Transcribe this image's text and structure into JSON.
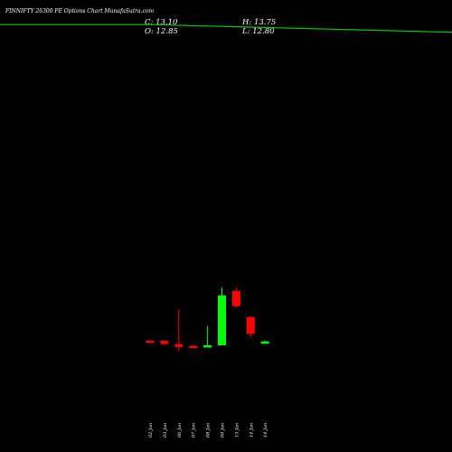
{
  "header": {
    "title": "FINNIFTY 26300 PE Options  Chart MunafaSutra.com",
    "open_label": "O:",
    "open_value": "12.85",
    "high_label": "H:",
    "high_value": "13.75",
    "low_label": "L:",
    "low_value": "12.80",
    "close_label": "C:",
    "close_value": "13.10"
  },
  "colors": {
    "up": "#00ff00",
    "down": "#ff0000",
    "line": "#00cc00",
    "background": "#000000"
  },
  "chart_data": {
    "type": "candlestick",
    "title": "FINNIFTY 26300 PE Options  Chart MunafaSutra.com",
    "categories": [
      "02 Jan",
      "03 Jan",
      "06 Jan",
      "07 Jan",
      "08 Jan",
      "09 Jan",
      "13 Jan",
      "14 Jan",
      "14 Jan"
    ],
    "candles": [
      {
        "date": "02 Jan",
        "open": 13.6,
        "high": 13.6,
        "low": 12.5,
        "close": 12.6
      },
      {
        "date": "03 Jan",
        "open": 13.6,
        "high": 13.6,
        "low": 11.1,
        "close": 11.4
      },
      {
        "date": "06 Jan",
        "open": 11.4,
        "high": 34.0,
        "low": 6.9,
        "close": 9.5
      },
      {
        "date": "07 Jan",
        "open": 10.3,
        "high": 10.3,
        "low": 9.3,
        "close": 9.3
      },
      {
        "date": "08 Jan",
        "open": 9.3,
        "high": 23.0,
        "low": 9.3,
        "close": 10.6
      },
      {
        "date": "09 Jan",
        "open": 10.6,
        "high": 48.0,
        "low": 10.6,
        "close": 43.0
      },
      {
        "date": "13 Jan",
        "open": 46.0,
        "high": 48.0,
        "low": 35.0,
        "close": 36.0
      },
      {
        "date": "14 Jan",
        "open": 29.0,
        "high": 29.0,
        "low": 16.0,
        "close": 18.0
      },
      {
        "date": "14 Jan",
        "open": 12.85,
        "high": 13.75,
        "low": 12.8,
        "close": 13.1
      }
    ],
    "line": [
      {
        "date": "start",
        "value": 219.0
      },
      {
        "date": "mid",
        "value": 219.0
      },
      {
        "date": "end",
        "value": 214.0
      }
    ],
    "ylim": [
      0,
      235
    ]
  }
}
